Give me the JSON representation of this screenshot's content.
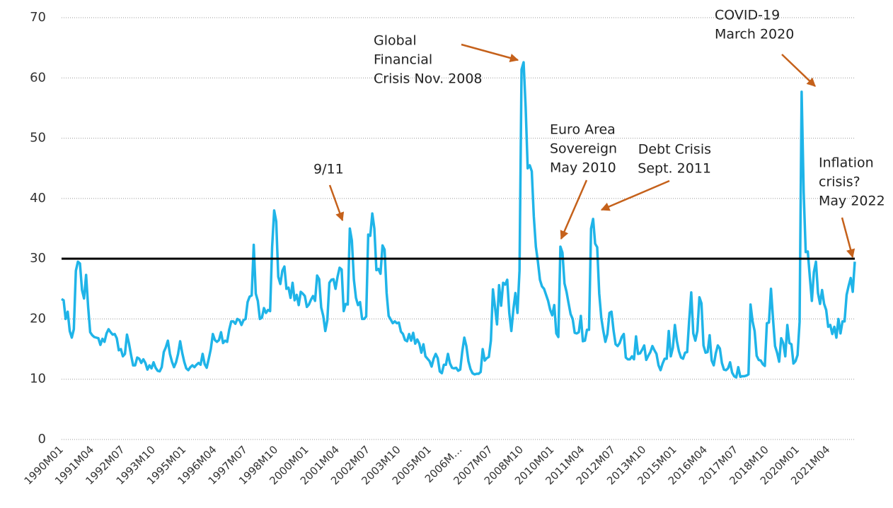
{
  "chart_data": {
    "type": "line",
    "categories": [
      "1990M01",
      null,
      null,
      null,
      null,
      null,
      null,
      null,
      null,
      null,
      null,
      null,
      null,
      null,
      null,
      "1991M04",
      null,
      null,
      null,
      null,
      null,
      null,
      null,
      null,
      null,
      null,
      null,
      null,
      null,
      null,
      "1992M07",
      null,
      null,
      null,
      null,
      null,
      null,
      null,
      null,
      null,
      null,
      null,
      null,
      null,
      null,
      "1993M10",
      null,
      null,
      null,
      null,
      null,
      null,
      null,
      null,
      null,
      null,
      null,
      null,
      null,
      null,
      "1995M01",
      null,
      null,
      null,
      null,
      null,
      null,
      null,
      null,
      null,
      null,
      null,
      null,
      null,
      null,
      "1996M04",
      null,
      null,
      null,
      null,
      null,
      null,
      null,
      null,
      null,
      null,
      null,
      null,
      null,
      null,
      "1997M07",
      null,
      null,
      null,
      null,
      null,
      null,
      null,
      null,
      null,
      null,
      null,
      null,
      null,
      null,
      "1998M10",
      null,
      null,
      null,
      null,
      null,
      null,
      null,
      null,
      null,
      null,
      null,
      null,
      null,
      null,
      "2000M01",
      null,
      null,
      null,
      null,
      null,
      null,
      null,
      null,
      null,
      null,
      null,
      null,
      null,
      null,
      "2001M04",
      null,
      null,
      null,
      null,
      null,
      null,
      null,
      null,
      null,
      null,
      null,
      null,
      null,
      null,
      "2002M07",
      null,
      null,
      null,
      null,
      null,
      null,
      null,
      null,
      null,
      null,
      null,
      null,
      null,
      null,
      "2003M10",
      null,
      null,
      null,
      null,
      null,
      null,
      null,
      null,
      null,
      null,
      null,
      null,
      null,
      null,
      "2005M01",
      null,
      null,
      null,
      null,
      null,
      null,
      null,
      null,
      null,
      null,
      null,
      null,
      null,
      null,
      "2006M…",
      null,
      null,
      null,
      null,
      null,
      null,
      null,
      null,
      null,
      null,
      null,
      null,
      null,
      null,
      "2007M07",
      null,
      null,
      null,
      null,
      null,
      null,
      null,
      null,
      null,
      null,
      null,
      null,
      null,
      null,
      "2008M10",
      null,
      null,
      null,
      null,
      null,
      null,
      null,
      null,
      null,
      null,
      null,
      null,
      null,
      null,
      "2010M01",
      null,
      null,
      null,
      null,
      null,
      null,
      null,
      null,
      null,
      null,
      null,
      null,
      null,
      null,
      "2011M04",
      null,
      null,
      null,
      null,
      null,
      null,
      null,
      null,
      null,
      null,
      null,
      null,
      null,
      null,
      "2012M07",
      null,
      null,
      null,
      null,
      null,
      null,
      null,
      null,
      null,
      null,
      null,
      null,
      null,
      null,
      "2013M10",
      null,
      null,
      null,
      null,
      null,
      null,
      null,
      null,
      null,
      null,
      null,
      null,
      null,
      null,
      "2015M01",
      null,
      null,
      null,
      null,
      null,
      null,
      null,
      null,
      null,
      null,
      null,
      null,
      null,
      null,
      "2016M04",
      null,
      null,
      null,
      null,
      null,
      null,
      null,
      null,
      null,
      null,
      null,
      null,
      null,
      null,
      "2017M07",
      null,
      null,
      null,
      null,
      null,
      null,
      null,
      null,
      null,
      null,
      null,
      null,
      null,
      null,
      "2018M10",
      null,
      null,
      null,
      null,
      null,
      null,
      null,
      null,
      null,
      null,
      null,
      null,
      null,
      null,
      "2020M01",
      null,
      null,
      null,
      null,
      null,
      null,
      null,
      null,
      null,
      null,
      null,
      null,
      null,
      null,
      "2021M04",
      null,
      null,
      null,
      null,
      null,
      null,
      null,
      null,
      null,
      null,
      null,
      null,
      null
    ],
    "values": [
      23.3,
      23.1,
      20.0,
      21.2,
      18.0,
      16.9,
      18.3,
      28.0,
      29.5,
      29.2,
      24.8,
      23.4,
      27.3,
      22.0,
      17.8,
      17.3,
      17.0,
      16.9,
      16.8,
      15.7,
      16.7,
      16.2,
      17.6,
      18.3,
      17.8,
      17.4,
      17.5,
      16.8,
      14.8,
      15.0,
      13.8,
      14.2,
      17.4,
      15.9,
      14.0,
      12.3,
      12.3,
      13.6,
      13.4,
      12.7,
      13.3,
      12.7,
      11.6,
      12.3,
      11.8,
      12.8,
      11.9,
      11.4,
      11.3,
      12.0,
      14.5,
      15.3,
      16.4,
      14.2,
      12.9,
      12.0,
      12.8,
      14.2,
      16.3,
      14.4,
      12.9,
      11.8,
      11.5,
      12.0,
      12.3,
      12.0,
      12.4,
      12.7,
      12.4,
      14.2,
      12.5,
      11.9,
      13.4,
      15.0,
      17.5,
      16.5,
      16.2,
      16.5,
      17.8,
      16.0,
      16.4,
      16.2,
      18.2,
      19.6,
      19.6,
      19.2,
      20.0,
      19.8,
      19.0,
      19.8,
      20.0,
      22.8,
      23.7,
      23.9,
      32.3,
      24.2,
      23.0,
      20.0,
      20.2,
      21.8,
      21.0,
      21.5,
      21.3,
      32.0,
      38.0,
      36.2,
      27.0,
      25.8,
      28.0,
      28.7,
      25.0,
      25.2,
      23.5,
      26.0,
      23.1,
      24.0,
      22.3,
      24.5,
      24.2,
      23.8,
      22.0,
      22.4,
      23.2,
      23.8,
      23.0,
      27.2,
      26.6,
      21.9,
      20.5,
      18.0,
      19.8,
      26.0,
      26.5,
      26.6,
      25.0,
      27.0,
      28.5,
      28.2,
      21.3,
      22.5,
      22.4,
      35.0,
      33.0,
      26.5,
      23.5,
      22.3,
      22.8,
      20.0,
      20.0,
      20.4,
      34.0,
      33.8,
      37.5,
      35.0,
      28.1,
      28.3,
      27.5,
      32.2,
      31.5,
      24.3,
      20.5,
      19.9,
      19.3,
      19.6,
      19.3,
      19.4,
      17.9,
      17.5,
      16.5,
      16.3,
      17.5,
      16.4,
      17.7,
      15.9,
      16.6,
      15.9,
      14.4,
      15.8,
      13.8,
      13.4,
      13.0,
      12.1,
      13.4,
      14.2,
      13.5,
      11.3,
      11.0,
      12.4,
      12.4,
      14.2,
      12.6,
      11.9,
      11.8,
      11.9,
      11.4,
      11.6,
      14.6,
      16.9,
      15.5,
      13.0,
      11.7,
      11.0,
      10.8,
      10.9,
      10.9,
      11.2,
      15.0,
      13.1,
      13.5,
      13.7,
      16.4,
      24.9,
      22.0,
      19.1,
      25.6,
      22.2,
      26.0,
      25.7,
      26.5,
      21.0,
      18.0,
      21.6,
      24.3,
      21.0,
      28.0,
      61.4,
      62.6,
      55.2,
      45.0,
      45.5,
      44.5,
      37.0,
      32.0,
      29.5,
      26.5,
      25.4,
      25.0,
      24.0,
      23.0,
      21.5,
      20.6,
      22.3,
      17.6,
      17.0,
      32.0,
      31.0,
      25.9,
      24.5,
      22.6,
      20.8,
      20.0,
      17.7,
      17.6,
      17.8,
      20.5,
      16.3,
      16.4,
      18.2,
      18.2,
      35.0,
      36.6,
      32.5,
      31.9,
      24.2,
      20.2,
      18.0,
      16.2,
      17.5,
      21.0,
      21.2,
      18.1,
      15.8,
      15.5,
      16.0,
      17.0,
      17.5,
      13.6,
      13.3,
      13.3,
      13.8,
      13.3,
      17.1,
      14.2,
      14.3,
      14.9,
      15.6,
      13.2,
      13.9,
      14.5,
      15.5,
      14.8,
      14.2,
      12.3,
      11.5,
      12.6,
      13.4,
      13.4,
      18.0,
      13.8,
      15.2,
      19.0,
      16.3,
      14.6,
      13.6,
      13.4,
      14.4,
      14.5,
      19.8,
      24.4,
      17.6,
      16.4,
      18.0,
      23.6,
      22.6,
      15.6,
      14.4,
      14.5,
      17.3,
      13.1,
      12.3,
      14.3,
      15.6,
      15.1,
      12.7,
      11.6,
      11.5,
      11.8,
      12.8,
      11.1,
      10.5,
      10.3,
      12.0,
      10.4,
      10.5,
      10.5,
      10.6,
      10.8,
      22.4,
      19.6,
      18.0,
      13.9,
      13.2,
      13.1,
      12.5,
      12.2,
      19.3,
      19.4,
      25.0,
      20.0,
      15.5,
      14.4,
      12.9,
      16.8,
      16.0,
      13.8,
      19.0,
      16.0,
      15.8,
      12.6,
      13.0,
      14.0,
      19.5,
      57.7,
      41.0,
      31.1,
      31.2,
      27.0,
      23.0,
      27.8,
      29.5,
      24.3,
      22.5,
      24.8,
      22.5,
      21.5,
      18.7,
      19.0,
      17.5,
      18.7,
      16.9,
      20.0,
      17.6,
      19.6,
      19.6,
      24.0,
      25.5,
      26.8,
      24.5,
      29.5
    ],
    "color": "#1fb4e8",
    "ylim": [
      0,
      70
    ],
    "yticks": [
      0,
      10,
      20,
      30,
      40,
      50,
      60,
      70
    ],
    "grid": true,
    "reference_line": {
      "value": 30,
      "color": "#000000"
    },
    "annotation_color": "#c5611b",
    "annotations": [
      {
        "lines": [
          "Global",
          "Financial",
          "Crisis Nov. 2008"
        ]
      },
      {
        "lines": [
          "COVID-19",
          "March 2020"
        ]
      },
      {
        "lines": [
          "9/11"
        ]
      },
      {
        "lines": [
          "Euro Area",
          "Sovereign",
          "May 2010"
        ]
      },
      {
        "lines": [
          "Debt Crisis",
          "Sept. 2011"
        ]
      },
      {
        "lines": [
          "Inflation",
          "crisis?",
          "May 2022"
        ]
      }
    ]
  }
}
